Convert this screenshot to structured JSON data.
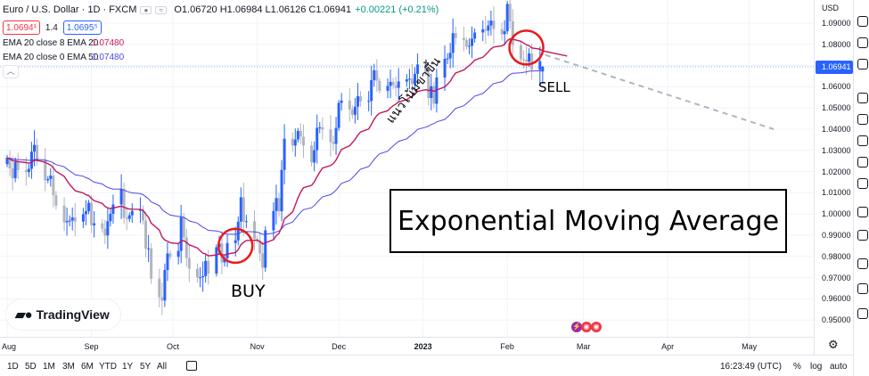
{
  "header": {
    "symbol": "Euro / U.S. Dollar · 1D · FXCM",
    "ohlc": "O1.06720 H1.06984 L1.06126 C1.06941",
    "change": "+0.00221 (+0.21%)",
    "sell_price": "1.0694¹",
    "spread": "1.4",
    "buy_price": "1.0695⁵"
  },
  "indicators": [
    {
      "label": "EMA 20 close 8 EMA 20",
      "value": "1.07480",
      "color": "#c2185b"
    },
    {
      "label": "EMA 20 close 0 EMA 50",
      "value": "1.07480",
      "color": "#4b46e8"
    }
  ],
  "annotations": {
    "box_title": "Exponential Moving Average",
    "buy": "BUY",
    "sell": "SELL",
    "trend": "แนวโน้มขาขึ้น"
  },
  "logo": "TradingView",
  "price_axis": {
    "currency": "USD",
    "current": "1.06941",
    "labels": [
      "1.09000",
      "1.08000",
      "1.07000",
      "1.06000",
      "1.05000",
      "1.04000",
      "1.03000",
      "1.02000",
      "1.01000",
      "1.00000",
      "0.99000",
      "0.98000",
      "0.97000",
      "0.96000",
      "0.95000"
    ]
  },
  "time_axis": [
    {
      "label": "Aug"
    },
    {
      "label": "Sep"
    },
    {
      "label": "Oct"
    },
    {
      "label": "Nov"
    },
    {
      "label": "Dec"
    },
    {
      "label": "2023",
      "bold": true
    },
    {
      "label": "Feb"
    },
    {
      "label": "Mar"
    },
    {
      "label": "Apr"
    },
    {
      "label": "May"
    }
  ],
  "bottom_bar": {
    "timeframes": [
      "1D",
      "5D",
      "1M",
      "3M",
      "6M",
      "YTD",
      "1Y",
      "5Y",
      "All"
    ],
    "time": "16:23:49 (UTC)",
    "percent": "%",
    "log": "log",
    "auto": "auto"
  },
  "colors": {
    "up": "#2962ff",
    "down": "#b2b5be",
    "ema20": "#c2185b",
    "ema50": "#4b46e8",
    "circle": "#e8191c",
    "projection": "#b2b5be"
  },
  "chart_data": {
    "type": "candlestick",
    "instrument": "EUR/USD",
    "ylim": [
      0.95,
      1.095
    ],
    "x_start": "2022-08-01",
    "trading_days": [
      "2022-08-01",
      "2022-08-02",
      "2022-08-03",
      "2022-08-04",
      "2022-08-05",
      "2022-08-08",
      "2022-08-09",
      "2022-08-10",
      "2022-08-11",
      "2022-08-12",
      "2022-08-15",
      "2022-08-16",
      "2022-08-17",
      "2022-08-18",
      "2022-08-19",
      "2022-08-22",
      "2022-08-23",
      "2022-08-24",
      "2022-08-25",
      "2022-08-26",
      "2022-08-29",
      "2022-08-30",
      "2022-08-31",
      "2022-09-01",
      "2022-09-02",
      "2022-09-05",
      "2022-09-06",
      "2022-09-07",
      "2022-09-08",
      "2022-09-09",
      "2022-09-12",
      "2022-09-13",
      "2022-09-14",
      "2022-09-15",
      "2022-09-16",
      "2022-09-19",
      "2022-09-20",
      "2022-09-21",
      "2022-09-22",
      "2022-09-23",
      "2022-09-26",
      "2022-09-27",
      "2022-09-28",
      "2022-09-29",
      "2022-09-30",
      "2022-10-03",
      "2022-10-04",
      "2022-10-05",
      "2022-10-06",
      "2022-10-07",
      "2022-10-10",
      "2022-10-11",
      "2022-10-12",
      "2022-10-13",
      "2022-10-14",
      "2022-10-17",
      "2022-10-18",
      "2022-10-19",
      "2022-10-20",
      "2022-10-21",
      "2022-10-24",
      "2022-10-25",
      "2022-10-26",
      "2022-10-27",
      "2022-10-28",
      "2022-10-31",
      "2022-11-01",
      "2022-11-02",
      "2022-11-03",
      "2022-11-04",
      "2022-11-07",
      "2022-11-08",
      "2022-11-09",
      "2022-11-10",
      "2022-11-11",
      "2022-11-14",
      "2022-11-15",
      "2022-11-16",
      "2022-11-17",
      "2022-11-18",
      "2022-11-21",
      "2022-11-22",
      "2022-11-23",
      "2022-11-24",
      "2022-11-25",
      "2022-11-28",
      "2022-11-29",
      "2022-11-30",
      "2022-12-01",
      "2022-12-02",
      "2022-12-05",
      "2022-12-06",
      "2022-12-07",
      "2022-12-08",
      "2022-12-09",
      "2022-12-12",
      "2022-12-13",
      "2022-12-14",
      "2022-12-15",
      "2022-12-16",
      "2022-12-19",
      "2022-12-20",
      "2022-12-21",
      "2022-12-22",
      "2022-12-23",
      "2022-12-26",
      "2022-12-27",
      "2022-12-28",
      "2022-12-29",
      "2022-12-30",
      "2023-01-02",
      "2023-01-03",
      "2023-01-04",
      "2023-01-05",
      "2023-01-06",
      "2023-01-09",
      "2023-01-10",
      "2023-01-11",
      "2023-01-12",
      "2023-01-13",
      "2023-01-16",
      "2023-01-17",
      "2023-01-18",
      "2023-01-19",
      "2023-01-20",
      "2023-01-23",
      "2023-01-24",
      "2023-01-25",
      "2023-01-26",
      "2023-01-27",
      "2023-01-30",
      "2023-01-31",
      "2023-02-01",
      "2023-02-02",
      "2023-02-03",
      "2023-02-06",
      "2023-02-07",
      "2023-02-08",
      "2023-02-09",
      "2023-02-10",
      "2023-02-13",
      "2023-02-14"
    ],
    "closes": [
      1.0265,
      1.0215,
      1.0169,
      1.0247,
      1.0207,
      1.0198,
      1.0213,
      1.0294,
      1.0326,
      1.0259,
      1.0159,
      1.0165,
      1.0181,
      1.0089,
      1.0039,
      0.9961,
      0.9967,
      0.9969,
      0.9984,
      0.9964,
      0.9999,
      1.0013,
      1.0053,
      0.9947,
      0.9956,
      0.9931,
      0.9899,
      0.9966,
      1.0001,
      1.0045,
      1.0119,
      0.9983,
      0.9977,
      0.9994,
      1.0015,
      1.0021,
      0.9969,
      0.9837,
      0.9838,
      0.9695,
      0.9607,
      0.9592,
      0.9736,
      0.9814,
      0.9798,
      0.9826,
      0.9985,
      0.9889,
      0.9793,
      0.9742,
      0.9702,
      0.9702,
      0.9707,
      0.9779,
      0.9719,
      0.9843,
      0.9861,
      0.9772,
      0.9791,
      0.9863,
      0.9876,
      0.9964,
      1.0079,
      0.9964,
      0.9966,
      0.9883,
      0.9876,
      0.9814,
      0.9747,
      0.9923,
      1.0014,
      1.0075,
      1.0013,
      1.0208,
      1.0355,
      1.0323,
      1.0351,
      1.0392,
      1.0365,
      1.0323,
      1.0243,
      1.0301,
      1.0406,
      1.0409,
      1.0398,
      1.0339,
      1.0331,
      1.0406,
      1.0524,
      1.0535,
      1.0493,
      1.0468,
      1.0506,
      1.0555,
      1.0531,
      1.0533,
      1.0631,
      1.0678,
      1.0628,
      1.0581,
      1.0604,
      1.0623,
      1.0607,
      1.0595,
      1.0625,
      1.0635,
      1.0638,
      1.0613,
      1.0661,
      1.0705,
      1.0667,
      1.0547,
      1.0603,
      1.052,
      1.0644,
      1.0732,
      1.0734,
      1.076,
      1.0853,
      1.083,
      1.082,
      1.0789,
      1.0793,
      1.0827,
      1.0856,
      1.0871,
      1.0865,
      1.0889,
      1.0912,
      1.0872,
      1.0848,
      1.0862,
      1.0991,
      1.0909,
      1.0796,
      1.073,
      1.0727,
      1.0719,
      1.0757,
      1.068,
      1.0721,
      1.0694
    ],
    "ema_series": [
      {
        "name": "EMA 20",
        "period": 20,
        "color": "#c2185b"
      },
      {
        "name": "EMA 50",
        "period": 50,
        "color": "#4b46e8"
      }
    ],
    "last_close": 1.06941,
    "projection": {
      "from": [
        "2023-02-15",
        1.075
      ],
      "to": [
        "2023-05-10",
        1.04
      ]
    },
    "x_labels": [
      "Aug",
      "Sep",
      "Oct",
      "Nov",
      "Dec",
      "2023",
      "Feb",
      "Mar",
      "Apr",
      "May"
    ],
    "y_labels": [
      0.95,
      0.96,
      0.97,
      0.98,
      0.99,
      1.0,
      1.01,
      1.02,
      1.03,
      1.04,
      1.05,
      1.06,
      1.07,
      1.08,
      1.09
    ],
    "grid": true,
    "highlights": [
      {
        "label": "BUY",
        "at": "2022-10-24",
        "price": 0.985
      },
      {
        "label": "SELL",
        "at": "2023-02-08",
        "price": 1.0785
      }
    ]
  }
}
